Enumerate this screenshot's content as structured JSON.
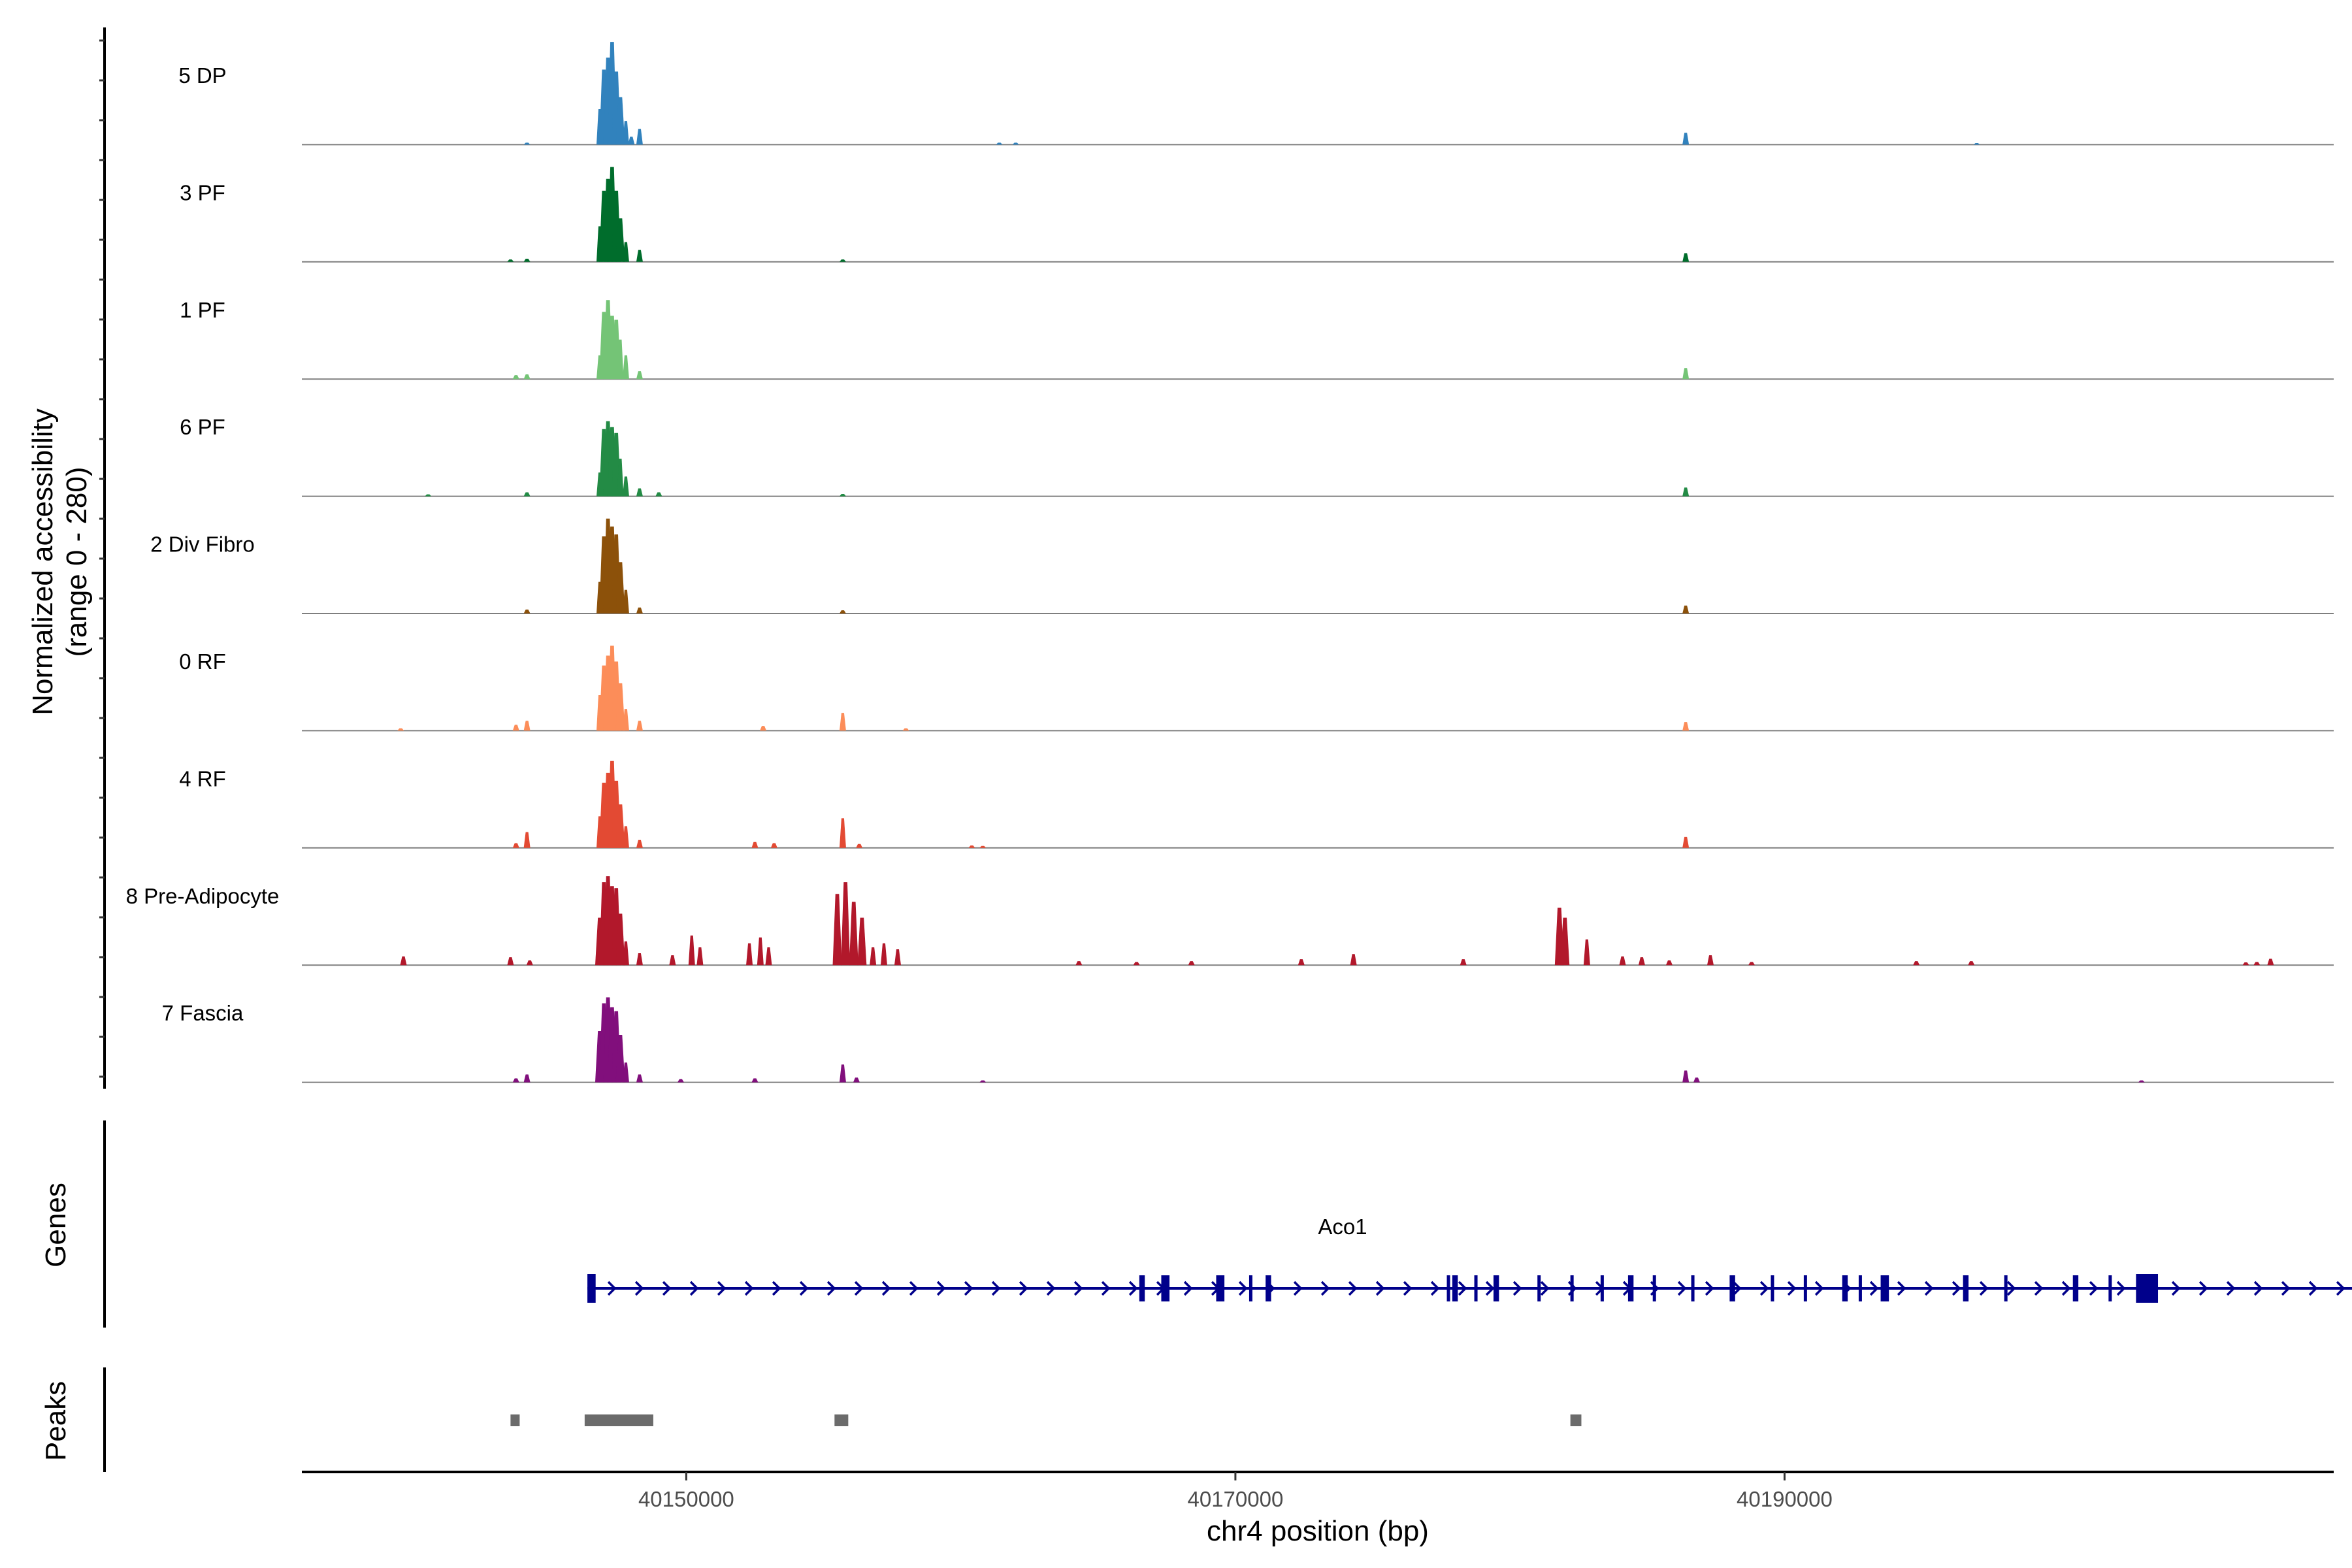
{
  "chart_data": {
    "type": "area",
    "title": "",
    "ylabel_line1": "Normalized accessibility",
    "ylabel_line2": "(range 0 - 280)",
    "xlabel": "chr4 position (bp)",
    "xlim": [
      40136000,
      40210000
    ],
    "ylim": [
      0,
      280
    ],
    "x_ticks": [
      40150000,
      40170000,
      40190000
    ],
    "x_tick_labels": [
      "40150000",
      "40170000",
      "40190000"
    ],
    "series": [
      {
        "name": "5 DP",
        "color": "#3182bd",
        "peaks": [
          [
            40146850,
            0,
            90
          ],
          [
            40147000,
            0,
            190
          ],
          [
            40147150,
            0,
            220
          ],
          [
            40147300,
            0,
            260
          ],
          [
            40147450,
            0,
            185
          ],
          [
            40147600,
            0,
            120
          ],
          [
            40147800,
            0,
            60
          ],
          [
            40148000,
            0,
            20
          ],
          [
            40148300,
            0,
            40
          ],
          [
            40144200,
            0,
            5
          ],
          [
            40161400,
            0,
            5
          ],
          [
            40186400,
            0,
            30
          ],
          [
            40162000,
            0,
            5
          ],
          [
            40197000,
            0,
            4
          ]
        ]
      },
      {
        "name": "3 PF",
        "color": "#006d2c",
        "peaks": [
          [
            40146850,
            0,
            90
          ],
          [
            40147000,
            0,
            180
          ],
          [
            40147150,
            0,
            210
          ],
          [
            40147300,
            0,
            240
          ],
          [
            40147450,
            0,
            180
          ],
          [
            40147600,
            0,
            110
          ],
          [
            40147800,
            0,
            50
          ],
          [
            40148300,
            0,
            30
          ],
          [
            40144200,
            0,
            8
          ],
          [
            40143600,
            0,
            6
          ],
          [
            40186400,
            0,
            22
          ],
          [
            40155700,
            0,
            6
          ]
        ]
      },
      {
        "name": "1 PF",
        "color": "#74c476",
        "peaks": [
          [
            40146850,
            0,
            60
          ],
          [
            40147000,
            0,
            170
          ],
          [
            40147150,
            0,
            200
          ],
          [
            40147300,
            0,
            160
          ],
          [
            40147450,
            0,
            150
          ],
          [
            40147600,
            0,
            100
          ],
          [
            40147800,
            0,
            60
          ],
          [
            40148300,
            0,
            20
          ],
          [
            40143800,
            0,
            10
          ],
          [
            40144200,
            0,
            12
          ],
          [
            40186400,
            0,
            28
          ]
        ]
      },
      {
        "name": "6 PF",
        "color": "#238b45",
        "peaks": [
          [
            40146850,
            0,
            60
          ],
          [
            40147000,
            0,
            170
          ],
          [
            40147150,
            0,
            190
          ],
          [
            40147300,
            0,
            175
          ],
          [
            40147450,
            0,
            160
          ],
          [
            40147600,
            0,
            95
          ],
          [
            40147800,
            0,
            50
          ],
          [
            40148300,
            0,
            20
          ],
          [
            40144200,
            0,
            10
          ],
          [
            40149000,
            0,
            10
          ],
          [
            40186400,
            0,
            22
          ],
          [
            40155700,
            0,
            6
          ],
          [
            40140600,
            0,
            5
          ]
        ]
      },
      {
        "name": "2 Div Fibro",
        "color": "#8c510a",
        "peaks": [
          [
            40146850,
            0,
            80
          ],
          [
            40147000,
            0,
            195
          ],
          [
            40147150,
            0,
            240
          ],
          [
            40147300,
            0,
            220
          ],
          [
            40147450,
            0,
            200
          ],
          [
            40147600,
            0,
            130
          ],
          [
            40147800,
            0,
            60
          ],
          [
            40148300,
            0,
            15
          ],
          [
            40144200,
            0,
            10
          ],
          [
            40155700,
            0,
            8
          ],
          [
            40186400,
            0,
            20
          ]
        ]
      },
      {
        "name": "0 RF",
        "color": "#fc8d59",
        "peaks": [
          [
            40146850,
            0,
            90
          ],
          [
            40147000,
            0,
            165
          ],
          [
            40147150,
            0,
            190
          ],
          [
            40147300,
            0,
            215
          ],
          [
            40147450,
            0,
            175
          ],
          [
            40147600,
            0,
            120
          ],
          [
            40147800,
            0,
            55
          ],
          [
            40148300,
            0,
            25
          ],
          [
            40143800,
            0,
            15
          ],
          [
            40144200,
            0,
            25
          ],
          [
            40152800,
            0,
            12
          ],
          [
            40155700,
            0,
            45
          ],
          [
            40158000,
            0,
            6
          ],
          [
            40186400,
            0,
            22
          ],
          [
            40139600,
            0,
            6
          ]
        ]
      },
      {
        "name": "4 RF",
        "color": "#e34a33",
        "peaks": [
          [
            40146850,
            0,
            80
          ],
          [
            40147000,
            0,
            165
          ],
          [
            40147150,
            0,
            190
          ],
          [
            40147300,
            0,
            220
          ],
          [
            40147450,
            0,
            170
          ],
          [
            40147600,
            0,
            110
          ],
          [
            40147800,
            0,
            55
          ],
          [
            40148300,
            0,
            20
          ],
          [
            40143800,
            0,
            12
          ],
          [
            40144200,
            0,
            40
          ],
          [
            40152500,
            0,
            15
          ],
          [
            40153200,
            0,
            12
          ],
          [
            40155700,
            0,
            75
          ],
          [
            40186400,
            0,
            28
          ],
          [
            40156300,
            0,
            10
          ],
          [
            40160400,
            0,
            6
          ],
          [
            40160800,
            0,
            5
          ]
        ]
      },
      {
        "name": "8 Pre-Adipocyte",
        "color": "#b2182b",
        "peaks": [
          [
            40146850,
            0,
            120
          ],
          [
            40147000,
            0,
            210
          ],
          [
            40147150,
            0,
            225
          ],
          [
            40147300,
            0,
            200
          ],
          [
            40147450,
            0,
            195
          ],
          [
            40147600,
            0,
            130
          ],
          [
            40147800,
            0,
            60
          ],
          [
            40148300,
            0,
            30
          ],
          [
            40139700,
            0,
            22
          ],
          [
            40143600,
            0,
            20
          ],
          [
            40144300,
            0,
            12
          ],
          [
            40149500,
            0,
            25
          ],
          [
            40150200,
            0,
            75
          ],
          [
            40150500,
            0,
            45
          ],
          [
            40152300,
            0,
            55
          ],
          [
            40152700,
            0,
            70
          ],
          [
            40153000,
            0,
            45
          ],
          [
            40155500,
            0,
            180
          ],
          [
            40155800,
            0,
            210
          ],
          [
            40156100,
            0,
            160
          ],
          [
            40156400,
            0,
            120
          ],
          [
            40156800,
            0,
            45
          ],
          [
            40157200,
            0,
            55
          ],
          [
            40157700,
            0,
            40
          ],
          [
            40164300,
            0,
            10
          ],
          [
            40166400,
            0,
            8
          ],
          [
            40168400,
            0,
            10
          ],
          [
            40172400,
            0,
            15
          ],
          [
            40174300,
            0,
            28
          ],
          [
            40178300,
            0,
            15
          ],
          [
            40181800,
            0,
            145
          ],
          [
            40182000,
            0,
            120
          ],
          [
            40182800,
            0,
            65
          ],
          [
            40184100,
            0,
            22
          ],
          [
            40184800,
            0,
            20
          ],
          [
            40185800,
            0,
            12
          ],
          [
            40187300,
            0,
            25
          ],
          [
            40188800,
            0,
            8
          ],
          [
            40194800,
            0,
            10
          ],
          [
            40196800,
            0,
            10
          ],
          [
            40207700,
            0,
            16
          ],
          [
            40207200,
            0,
            8
          ],
          [
            40206800,
            0,
            7
          ]
        ]
      },
      {
        "name": "7 Fascia",
        "color": "#810f7c",
        "peaks": [
          [
            40146850,
            0,
            130
          ],
          [
            40147000,
            0,
            200
          ],
          [
            40147150,
            0,
            215
          ],
          [
            40147300,
            0,
            190
          ],
          [
            40147450,
            0,
            180
          ],
          [
            40147600,
            0,
            120
          ],
          [
            40147800,
            0,
            50
          ],
          [
            40148300,
            0,
            20
          ],
          [
            40143800,
            0,
            10
          ],
          [
            40144200,
            0,
            20
          ],
          [
            40149800,
            0,
            8
          ],
          [
            40152500,
            0,
            10
          ],
          [
            40155700,
            0,
            45
          ],
          [
            40156200,
            0,
            12
          ],
          [
            40160800,
            0,
            5
          ],
          [
            40186400,
            0,
            30
          ],
          [
            40186800,
            0,
            12
          ],
          [
            40203000,
            0,
            5
          ]
        ]
      }
    ],
    "genes": {
      "title": "Genes",
      "name": "Aco1",
      "color": "#00008b",
      "start": 40146400,
      "end": 40212400,
      "strand": "+",
      "exons": [
        [
          40146400,
          40146700
        ],
        [
          40166500,
          40166700
        ],
        [
          40167300,
          40167600
        ],
        [
          40169300,
          40169600
        ],
        [
          40170500,
          40170600
        ],
        [
          40171100,
          40171300
        ],
        [
          40177700,
          40177800
        ],
        [
          40177900,
          40178100
        ],
        [
          40178700,
          40178800
        ],
        [
          40179400,
          40179600
        ],
        [
          40181000,
          40181100
        ],
        [
          40182200,
          40182300
        ],
        [
          40183300,
          40183400
        ],
        [
          40184300,
          40184500
        ],
        [
          40185200,
          40185300
        ],
        [
          40186600,
          40186700
        ],
        [
          40188000,
          40188200
        ],
        [
          40189500,
          40189600
        ],
        [
          40190700,
          40190800
        ],
        [
          40192100,
          40192300
        ],
        [
          40192700,
          40192800
        ],
        [
          40193500,
          40193800
        ],
        [
          40196500,
          40196700
        ],
        [
          40198000,
          40198100
        ],
        [
          40200500,
          40200700
        ],
        [
          40201800,
          40201900
        ],
        [
          40202800,
          40203600
        ]
      ]
    },
    "peaks_track": {
      "title": "Peaks",
      "color": "#6b6b6b",
      "regions": [
        [
          40143600,
          40143900
        ],
        [
          40146300,
          40148800
        ],
        [
          40155400,
          40155900
        ],
        [
          40182200,
          40182600
        ]
      ]
    }
  }
}
